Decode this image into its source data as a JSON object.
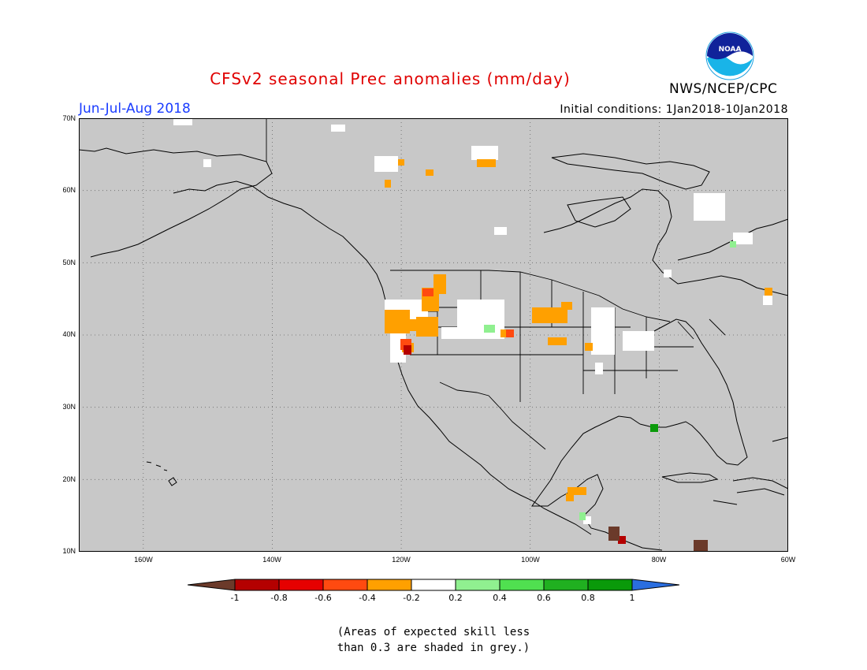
{
  "header": {
    "title": "CFSv2 seasonal Prec anomalies (mm/day)",
    "period": "Jun-Jul-Aug 2018",
    "initial_conditions": "Initial conditions: 1Jan2018-10Jan2018",
    "agency": "NWS/NCEP/CPC",
    "logo_text": "NOAA"
  },
  "map": {
    "lat_labels": [
      "70N",
      "60N",
      "50N",
      "40N",
      "30N",
      "20N",
      "10N"
    ],
    "lon_labels": [
      "160W",
      "140W",
      "120W",
      "100W",
      "80W",
      "60W"
    ],
    "lat_range": [
      10,
      70
    ],
    "lon_range": [
      -170,
      -60
    ],
    "background_color": "#c8c8c8"
  },
  "colorbar": {
    "labels": [
      "-1",
      "-0.8",
      "-0.6",
      "-0.4",
      "-0.2",
      "0.2",
      "0.4",
      "0.6",
      "0.8",
      "1"
    ],
    "colors": [
      "#6b3a2a",
      "#b40000",
      "#e60000",
      "#ff4a10",
      "#ffa000",
      "#ffffff",
      "#90f090",
      "#50e050",
      "#20b020",
      "#0a9a0a",
      "#2a6ee0"
    ]
  },
  "footnote": {
    "line1": "(Areas of expected skill less",
    "line2": "than 0.3 are shaded in grey.)"
  }
}
